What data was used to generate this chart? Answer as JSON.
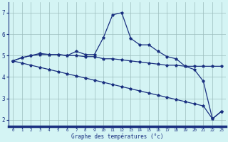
{
  "background_color": "#d4f4f4",
  "grid_color": "#9bbcbc",
  "line_color": "#1a3080",
  "xlabel": "Graphe des températures (°c)",
  "xlim": [
    -0.5,
    23.5
  ],
  "ylim": [
    1.7,
    7.5
  ],
  "yticks": [
    2,
    3,
    4,
    5,
    6,
    7
  ],
  "xticks": [
    0,
    1,
    2,
    3,
    4,
    5,
    6,
    7,
    8,
    9,
    10,
    11,
    12,
    13,
    14,
    15,
    16,
    17,
    18,
    19,
    20,
    21,
    22,
    23
  ],
  "series": [
    {
      "x": [
        0,
        1,
        2,
        3,
        4,
        5,
        6,
        7,
        8,
        9,
        10,
        11,
        12,
        13,
        14,
        15,
        16,
        17,
        18,
        19,
        20,
        21,
        22,
        23
      ],
      "y": [
        4.75,
        4.9,
        5.0,
        5.05,
        5.05,
        5.05,
        5.0,
        5.0,
        4.95,
        4.95,
        4.85,
        4.85,
        4.8,
        4.75,
        4.7,
        4.65,
        4.6,
        4.55,
        4.55,
        4.5,
        4.5,
        4.5,
        4.5,
        4.5
      ]
    },
    {
      "x": [
        0,
        1,
        2,
        3,
        4,
        5,
        6,
        7,
        8,
        9,
        10,
        11,
        12,
        13,
        14,
        15,
        16,
        17,
        18,
        19,
        20,
        21,
        22,
        23
      ],
      "y": [
        4.75,
        4.9,
        5.0,
        5.1,
        5.05,
        5.05,
        5.0,
        5.2,
        5.05,
        5.05,
        5.85,
        6.9,
        7.0,
        5.8,
        5.5,
        5.5,
        5.2,
        4.95,
        4.85,
        4.5,
        4.35,
        3.8,
        2.05,
        2.4
      ]
    },
    {
      "x": [
        0,
        1,
        2,
        3,
        4,
        5,
        6,
        7,
        8,
        9,
        10,
        11,
        12,
        13,
        14,
        15,
        16,
        17,
        18,
        19,
        20,
        21,
        22,
        23
      ],
      "y": [
        4.75,
        4.65,
        4.55,
        4.45,
        4.35,
        4.25,
        4.15,
        4.05,
        3.95,
        3.85,
        3.75,
        3.65,
        3.55,
        3.45,
        3.35,
        3.25,
        3.15,
        3.05,
        2.95,
        2.85,
        2.75,
        2.65,
        2.05,
        2.4
      ]
    }
  ]
}
